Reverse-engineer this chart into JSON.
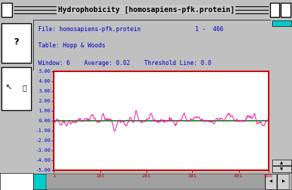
{
  "title": "Hydrophobicity [homosapiens-pfk.protein]",
  "file_label": "File: homosapiens-pfk.protein",
  "range_label": "1 -  466",
  "table_label": "Table: Hopp & Woods",
  "window_label": "Window: 6",
  "average_label": "Average: 0.02",
  "threshold_label": "Threshold Line: 0.0",
  "x_start": 1,
  "x_end": 466,
  "ylim": [
    -5.0,
    5.0
  ],
  "yticks": [
    -5.0,
    -4.0,
    -3.0,
    -2.0,
    -1.0,
    0.0,
    1.0,
    2.0,
    3.0,
    4.0,
    5.0
  ],
  "xticks": [
    1,
    101,
    201,
    301,
    401,
    466
  ],
  "threshold_value": 0.0,
  "outer_bg": "#c0c0c0",
  "inner_bg": "#ffffff",
  "plot_bg_color": "#ffffff",
  "plot_border_color": "#cc0000",
  "line_color": "#ff00aa",
  "threshold_color": "#008000",
  "text_color": "#0000cc",
  "title_bar_color": "#c8c8c8",
  "cyan_color": "#00cccc",
  "scrollbar_color": "#a0a0a0",
  "seed": 42,
  "n_points": 466
}
